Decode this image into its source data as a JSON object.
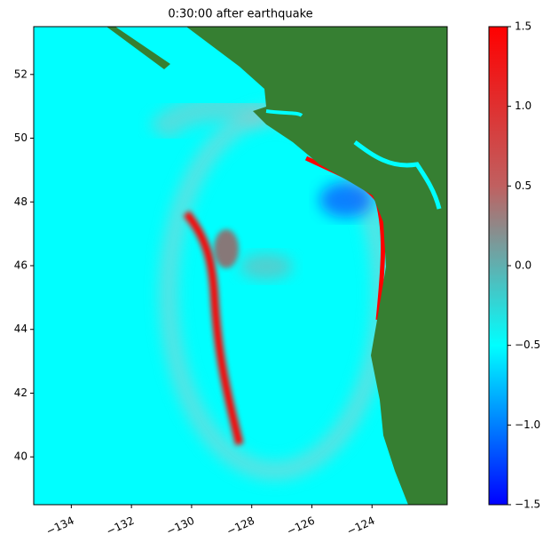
{
  "chart_data": {
    "type": "heatmap",
    "title": "0:30:00 after earthquake",
    "xlim": [
      -135.25,
      -121.5
    ],
    "xticks": [
      {
        "value": -134,
        "label": "−134"
      },
      {
        "value": -132,
        "label": "−132"
      },
      {
        "value": -130,
        "label": "−130"
      },
      {
        "value": -128,
        "label": "−128"
      },
      {
        "value": -126,
        "label": "−126"
      },
      {
        "value": -124,
        "label": "−124"
      }
    ],
    "ylim": [
      38.5,
      53.5
    ],
    "yticks": [
      40,
      42,
      44,
      46,
      48,
      50,
      52
    ],
    "colorbar": {
      "lim": [
        -1.5,
        1.5
      ],
      "ticks": [
        {
          "value": -1.5,
          "label": "−1.5"
        },
        {
          "value": -1.0,
          "label": "−1.0"
        },
        {
          "value": -0.5,
          "label": "−0.5"
        },
        {
          "value": 0.0,
          "label": "0.0"
        },
        {
          "value": 0.5,
          "label": "0.5"
        },
        {
          "value": 1.0,
          "label": "1.0"
        },
        1.5
      ],
      "colors": [
        "#0000ff",
        "#00ffff",
        "#c06060",
        "#ff0000"
      ]
    }
  }
}
